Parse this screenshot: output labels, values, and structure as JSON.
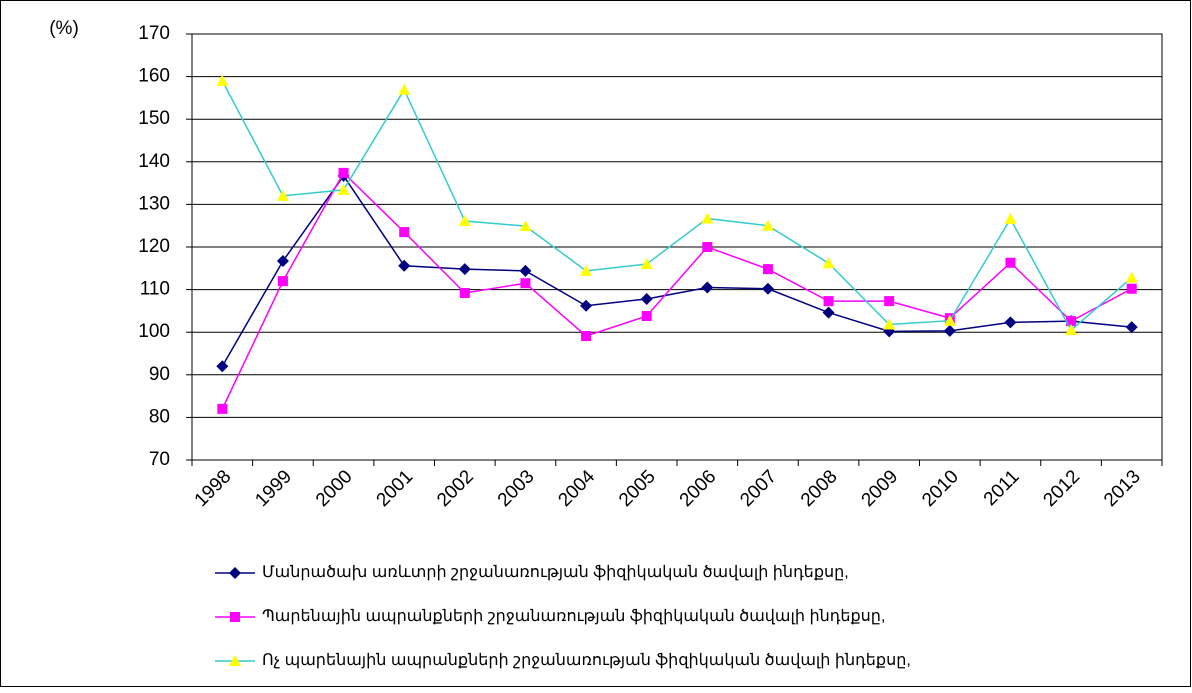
{
  "chart_data": {
    "type": "line",
    "y_label": "(%)",
    "categories": [
      "1998",
      "1999",
      "2000",
      "2001",
      "2002",
      "2003",
      "2004",
      "2005",
      "2006",
      "2007",
      "2008",
      "2009",
      "2010",
      "2011",
      "2012",
      "2013"
    ],
    "series": [
      {
        "name": "Մանրածախ առևտրի շրջանառության ֆիզիկական ծավալի ինդեքսը,",
        "color": "#000080",
        "marker": "diamond",
        "marker_color": "#000080",
        "values": [
          92,
          116.7,
          136.7,
          115.6,
          114.8,
          114.4,
          106.2,
          107.8,
          110.5,
          110.2,
          104.6,
          100.2,
          100.3,
          102.3,
          102.6,
          101.2
        ]
      },
      {
        "name": "Պարենային ապրանքների շրջանառության ֆիզիկական ծավալի ինդեքսը,",
        "color": "#ff00ff",
        "marker": "square",
        "marker_color": "#ff00ff",
        "values": [
          82,
          112,
          137.4,
          123.5,
          109.2,
          111.5,
          99.1,
          103.8,
          120,
          114.8,
          107.3,
          107.3,
          103.3,
          116.3,
          102.6,
          110.2
        ]
      },
      {
        "name": "Ոչ պարենային ապրանքների շրջանառության ֆիզիկական ծավալի ինդեքսը,",
        "color": "#33cccc",
        "marker": "triangle",
        "marker_color": "#ffff00",
        "values": [
          159,
          132,
          133.4,
          156.9,
          126.1,
          124.9,
          114.4,
          116,
          126.7,
          125,
          116.2,
          101.8,
          102.7,
          126.6,
          100.5,
          112.8
        ]
      }
    ],
    "ylim": [
      70,
      170
    ],
    "yticks": [
      70,
      80,
      90,
      100,
      110,
      120,
      130,
      140,
      150,
      160,
      170
    ],
    "grid": true
  }
}
